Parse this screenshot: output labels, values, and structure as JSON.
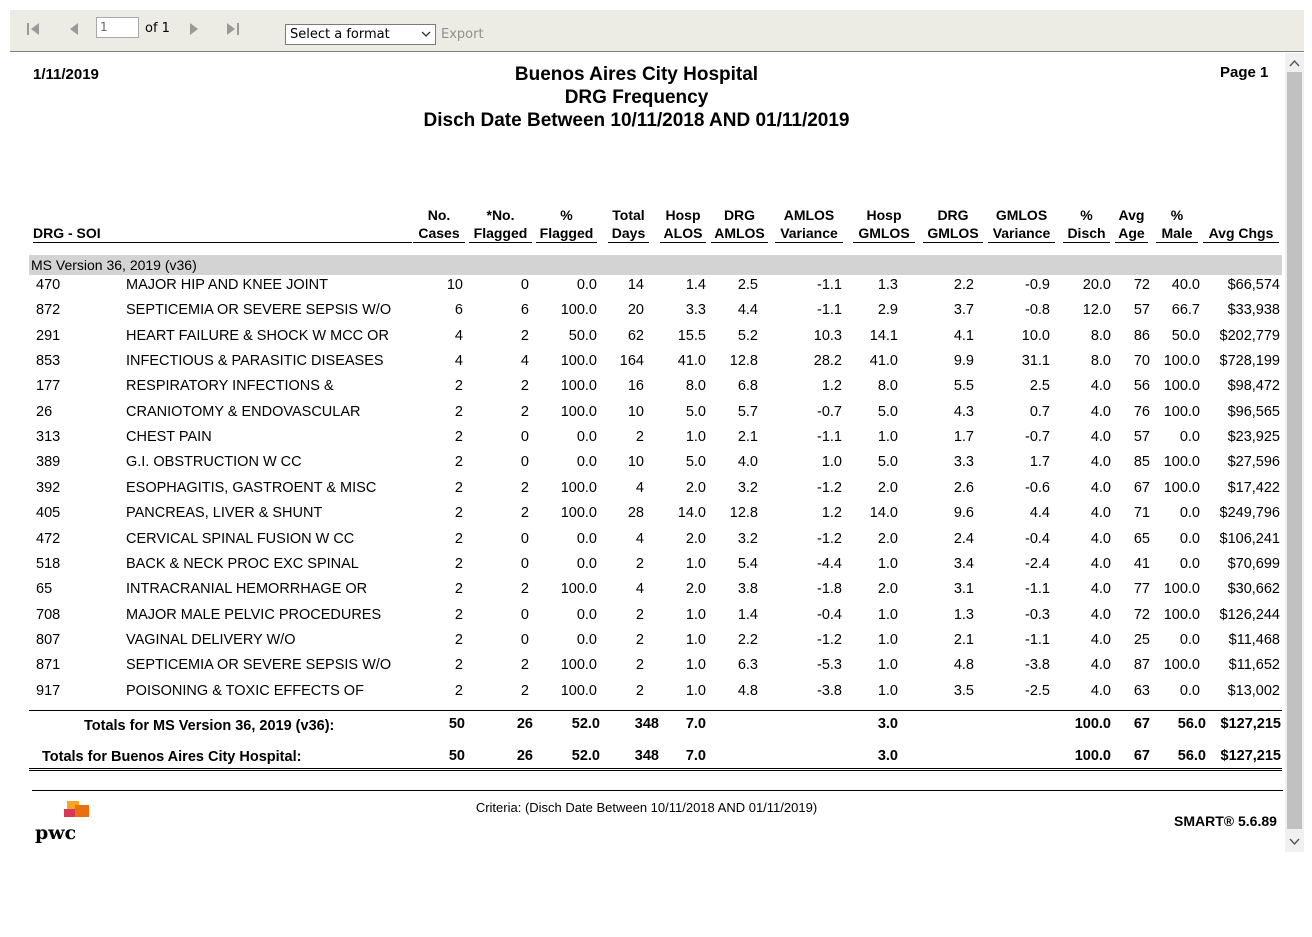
{
  "toolbar": {
    "page_number": "1",
    "of_pages": "of 1",
    "format_placeholder": "Select a format",
    "export_label": "Export"
  },
  "report": {
    "date": "1/11/2019",
    "page_label": "Page 1",
    "title_lines": [
      "Buenos Aires City Hospital",
      "DRG Frequency",
      "Disch Date Between 10/11/2018 AND 01/11/2019"
    ],
    "columns": [
      [
        "",
        "DRG - SOI"
      ],
      [
        "No.",
        "Cases"
      ],
      [
        "*No.",
        "Flagged"
      ],
      [
        "%",
        "Flagged"
      ],
      [
        "Total",
        "Days"
      ],
      [
        "Hosp",
        "ALOS"
      ],
      [
        "DRG",
        "AMLOS"
      ],
      [
        "AMLOS",
        "Variance"
      ],
      [
        "Hosp",
        "GMLOS"
      ],
      [
        "DRG",
        "GMLOS"
      ],
      [
        "GMLOS",
        "Variance"
      ],
      [
        "%",
        "Disch"
      ],
      [
        "Avg",
        "Age"
      ],
      [
        "%",
        "Male"
      ],
      [
        "",
        "Avg Chgs"
      ]
    ],
    "group_label": "MS Version 36, 2019 (v36)",
    "rows": [
      [
        "470",
        "MAJOR HIP AND KNEE JOINT",
        "10",
        "0",
        "0.0",
        "14",
        "1.4",
        "2.5",
        "-1.1",
        "1.3",
        "2.2",
        "-0.9",
        "20.0",
        "72",
        "40.0",
        "$66,574"
      ],
      [
        "872",
        "SEPTICEMIA OR SEVERE SEPSIS W/O",
        "6",
        "6",
        "100.0",
        "20",
        "3.3",
        "4.4",
        "-1.1",
        "2.9",
        "3.7",
        "-0.8",
        "12.0",
        "57",
        "66.7",
        "$33,938"
      ],
      [
        "291",
        "HEART FAILURE & SHOCK W MCC OR",
        "4",
        "2",
        "50.0",
        "62",
        "15.5",
        "5.2",
        "10.3",
        "14.1",
        "4.1",
        "10.0",
        "8.0",
        "86",
        "50.0",
        "$202,779"
      ],
      [
        "853",
        "INFECTIOUS & PARASITIC DISEASES",
        "4",
        "4",
        "100.0",
        "164",
        "41.0",
        "12.8",
        "28.2",
        "41.0",
        "9.9",
        "31.1",
        "8.0",
        "70",
        "100.0",
        "$728,199"
      ],
      [
        "177",
        "RESPIRATORY INFECTIONS &",
        "2",
        "2",
        "100.0",
        "16",
        "8.0",
        "6.8",
        "1.2",
        "8.0",
        "5.5",
        "2.5",
        "4.0",
        "56",
        "100.0",
        "$98,472"
      ],
      [
        "26",
        "CRANIOTOMY & ENDOVASCULAR",
        "2",
        "2",
        "100.0",
        "10",
        "5.0",
        "5.7",
        "-0.7",
        "5.0",
        "4.3",
        "0.7",
        "4.0",
        "76",
        "100.0",
        "$96,565"
      ],
      [
        "313",
        "CHEST PAIN",
        "2",
        "0",
        "0.0",
        "2",
        "1.0",
        "2.1",
        "-1.1",
        "1.0",
        "1.7",
        "-0.7",
        "4.0",
        "57",
        "0.0",
        "$23,925"
      ],
      [
        "389",
        "G.I. OBSTRUCTION W CC",
        "2",
        "0",
        "0.0",
        "10",
        "5.0",
        "4.0",
        "1.0",
        "5.0",
        "3.3",
        "1.7",
        "4.0",
        "85",
        "100.0",
        "$27,596"
      ],
      [
        "392",
        "ESOPHAGITIS, GASTROENT & MISC",
        "2",
        "2",
        "100.0",
        "4",
        "2.0",
        "3.2",
        "-1.2",
        "2.0",
        "2.6",
        "-0.6",
        "4.0",
        "67",
        "100.0",
        "$17,422"
      ],
      [
        "405",
        "PANCREAS, LIVER & SHUNT",
        "2",
        "2",
        "100.0",
        "28",
        "14.0",
        "12.8",
        "1.2",
        "14.0",
        "9.6",
        "4.4",
        "4.0",
        "71",
        "0.0",
        "$249,796"
      ],
      [
        "472",
        "CERVICAL SPINAL FUSION W CC",
        "2",
        "0",
        "0.0",
        "4",
        "2.0",
        "3.2",
        "-1.2",
        "2.0",
        "2.4",
        "-0.4",
        "4.0",
        "65",
        "0.0",
        "$106,241"
      ],
      [
        "518",
        "BACK & NECK PROC EXC SPINAL",
        "2",
        "0",
        "0.0",
        "2",
        "1.0",
        "5.4",
        "-4.4",
        "1.0",
        "3.4",
        "-2.4",
        "4.0",
        "41",
        "0.0",
        "$70,699"
      ],
      [
        "65",
        "INTRACRANIAL HEMORRHAGE OR",
        "2",
        "2",
        "100.0",
        "4",
        "2.0",
        "3.8",
        "-1.8",
        "2.0",
        "3.1",
        "-1.1",
        "4.0",
        "77",
        "100.0",
        "$30,662"
      ],
      [
        "708",
        "MAJOR MALE PELVIC PROCEDURES",
        "2",
        "0",
        "0.0",
        "2",
        "1.0",
        "1.4",
        "-0.4",
        "1.0",
        "1.3",
        "-0.3",
        "4.0",
        "72",
        "100.0",
        "$126,244"
      ],
      [
        "807",
        "VAGINAL DELIVERY W/O",
        "2",
        "0",
        "0.0",
        "2",
        "1.0",
        "2.2",
        "-1.2",
        "1.0",
        "2.1",
        "-1.1",
        "4.0",
        "25",
        "0.0",
        "$11,468"
      ],
      [
        "871",
        "SEPTICEMIA OR SEVERE SEPSIS W/O",
        "2",
        "2",
        "100.0",
        "2",
        "1.0",
        "6.3",
        "-5.3",
        "1.0",
        "4.8",
        "-3.8",
        "4.0",
        "87",
        "100.0",
        "$11,652"
      ],
      [
        "917",
        "POISONING & TOXIC EFFECTS OF",
        "2",
        "2",
        "100.0",
        "2",
        "1.0",
        "4.8",
        "-3.8",
        "1.0",
        "3.5",
        "-2.5",
        "4.0",
        "63",
        "0.0",
        "$13,002"
      ]
    ],
    "totals": [
      {
        "label": "Totals for MS Version 36, 2019 (v36):",
        "cases": "50",
        "flagged": "26",
        "pct_flagged": "52.0",
        "days": "348",
        "alos": "7.0",
        "gmlos": "3.0",
        "pct_disch": "100.0",
        "age": "67",
        "male": "56.0",
        "chgs": "$127,215"
      },
      {
        "label": "Totals for Buenos Aires City Hospital:",
        "cases": "50",
        "flagged": "26",
        "pct_flagged": "52.0",
        "days": "348",
        "alos": "7.0",
        "gmlos": "3.0",
        "pct_disch": "100.0",
        "age": "67",
        "male": "56.0",
        "chgs": "$127,215"
      }
    ],
    "criteria": "Criteria: (Disch Date Between 10/11/2018 AND 01/11/2019)",
    "version": "SMART® 5.6.89",
    "logo_text": "pwc"
  },
  "colors": {
    "toolbar_bg": "#ecece4",
    "group_bar": "#d3d3d3",
    "logo_orange": "#e8700f",
    "logo_red": "#d93954"
  }
}
